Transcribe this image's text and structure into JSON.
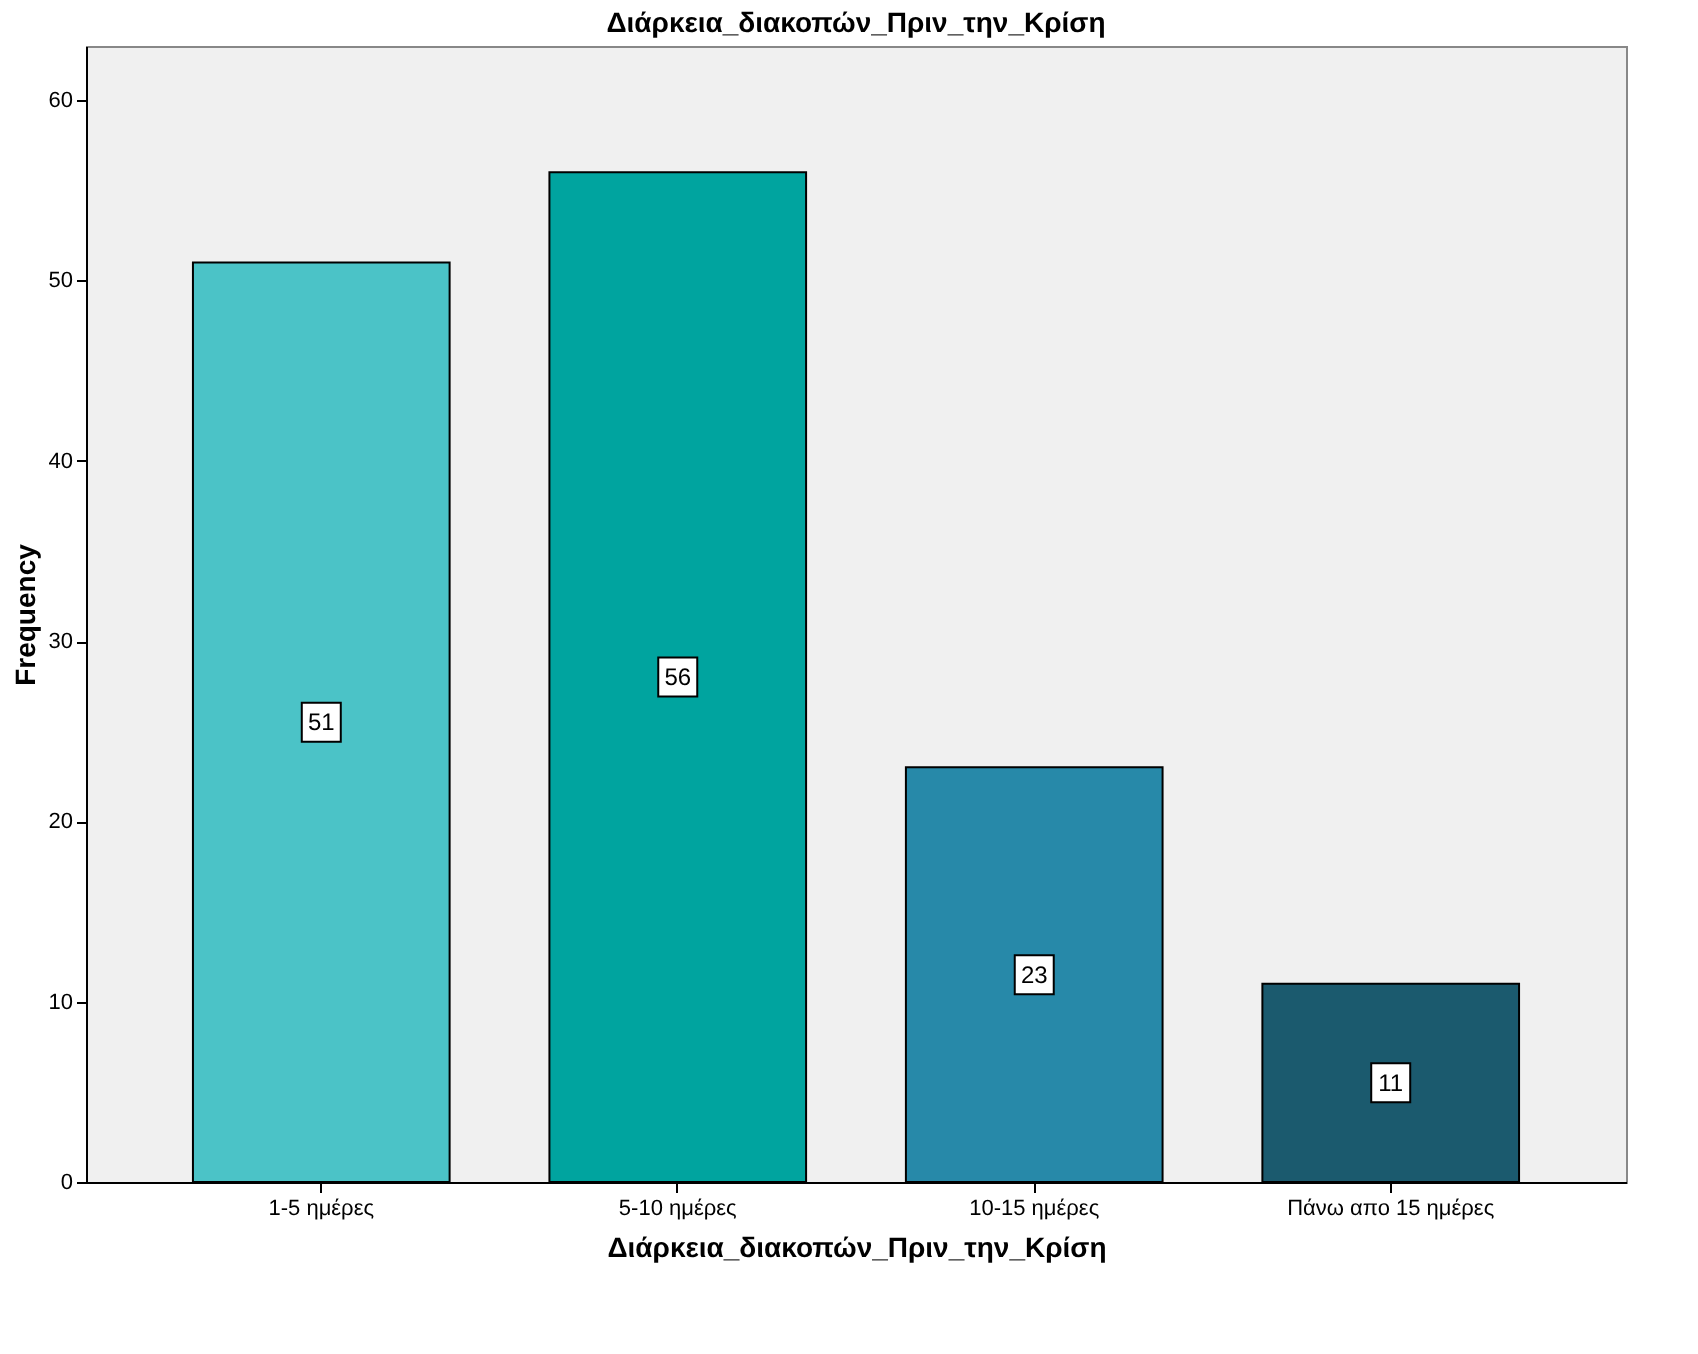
{
  "chart_data": {
    "type": "bar",
    "title": "Διάρκεια_διακοπών_Πριν_την_Κρίση",
    "xlabel": "Διάρκεια_διακοπών_Πριν_την_Κρίση",
    "ylabel": "Frequency",
    "categories": [
      "1-5 ημέρες",
      "5-10 ημέρες",
      "10-15 ημέρες",
      "Πάνω απο 15 ημέρες"
    ],
    "values": [
      51,
      56,
      23,
      11
    ],
    "colors": [
      "#4bc3c7",
      "#00a49f",
      "#2789a9",
      "#1b5a6e"
    ],
    "ylim": [
      0,
      63
    ],
    "yticks": [
      0,
      10,
      20,
      30,
      40,
      50,
      60
    ],
    "grid": false,
    "data_labels": true
  }
}
